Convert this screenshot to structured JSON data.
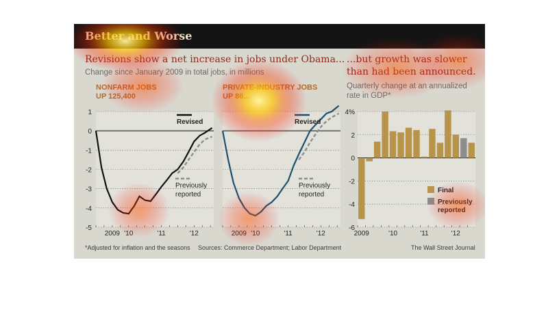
{
  "banner": "Better and Worse",
  "left_headline": "Revisions show a net increase in jobs under Obama...",
  "left_subtitle": "Change since January 2009 in total jobs, in millions",
  "right_headline_1": "...but growth was slower",
  "right_headline_2": "than had been announced.",
  "right_subtitle_1": "Quarterly change at an annualized",
  "right_subtitle_2": "rate in GDP*",
  "panels": {
    "nonfarm": {
      "title_1": "NONFARM JOBS",
      "title_2": "UP 125,400"
    },
    "private": {
      "title_1": "PRIVATE-INDUSTRY JOBS",
      "title_2": "UP 86..."
    }
  },
  "footnote": "*Adjusted for inflation and the seasons",
  "sources": "Sources: Commerce Department; Labor Department",
  "credit": "The Wall Street Journal",
  "colors": {
    "nonfarm": "#111111",
    "private": "#1e4f6c",
    "previous": "#8d8d8d",
    "final": "#b8944a",
    "headline": "#8a2a1c",
    "panel_title": "#b46a2c"
  },
  "chart_data": [
    {
      "type": "line",
      "title": "NONFARM JOBS",
      "ylim": [
        -5,
        1
      ],
      "yticks": [
        1,
        0,
        -1,
        -2,
        -3,
        -4,
        -5
      ],
      "xlim": [
        2009.0,
        2012.6
      ],
      "xticks": [
        {
          "label": "2009",
          "x": 2009.5
        },
        {
          "label": "'10",
          "x": 2010.0
        },
        {
          "label": "'11",
          "x": 2011.0
        },
        {
          "label": "'12",
          "x": 2012.0
        }
      ],
      "legend": [
        "Revised",
        "Previously reported"
      ],
      "series": [
        {
          "name": "Revised",
          "x": [
            2009.0,
            2009.17,
            2009.33,
            2009.5,
            2009.67,
            2009.83,
            2010.0,
            2010.17,
            2010.33,
            2010.5,
            2010.67,
            2010.83,
            2011.0,
            2011.17,
            2011.33,
            2011.5,
            2011.67,
            2011.83,
            2012.0,
            2012.17,
            2012.33,
            2012.55
          ],
          "values": [
            0,
            -1.9,
            -3.0,
            -3.7,
            -4.1,
            -4.25,
            -4.3,
            -3.9,
            -3.4,
            -3.6,
            -3.65,
            -3.3,
            -2.9,
            -2.55,
            -2.2,
            -2.0,
            -1.6,
            -1.1,
            -0.55,
            -0.25,
            -0.1,
            0.15
          ]
        },
        {
          "name": "Previously reported",
          "x": [
            2011.5,
            2011.67,
            2011.83,
            2012.0,
            2012.17,
            2012.33,
            2012.55
          ],
          "values": [
            -2.2,
            -1.9,
            -1.5,
            -1.1,
            -0.7,
            -0.45,
            -0.3
          ]
        }
      ]
    },
    {
      "type": "line",
      "title": "PRIVATE-INDUSTRY JOBS",
      "ylim": [
        -5,
        1
      ],
      "xlim": [
        2009.0,
        2012.6
      ],
      "xticks": [
        {
          "label": "2009",
          "x": 2009.5
        },
        {
          "label": "'10",
          "x": 2010.0
        },
        {
          "label": "'11",
          "x": 2011.0
        },
        {
          "label": "'12",
          "x": 2012.0
        }
      ],
      "legend": [
        "Revised",
        "Previously reported"
      ],
      "series": [
        {
          "name": "Revised",
          "x": [
            2009.0,
            2009.17,
            2009.33,
            2009.5,
            2009.67,
            2009.83,
            2010.0,
            2010.17,
            2010.33,
            2010.5,
            2010.67,
            2010.83,
            2011.0,
            2011.17,
            2011.33,
            2011.5,
            2011.67,
            2011.83,
            2012.0,
            2012.17,
            2012.33,
            2012.55
          ],
          "values": [
            0,
            -1.5,
            -2.7,
            -3.5,
            -4.0,
            -4.3,
            -4.4,
            -4.2,
            -3.9,
            -3.7,
            -3.4,
            -3.0,
            -2.6,
            -1.8,
            -1.2,
            -0.6,
            0.0,
            0.3,
            0.6,
            0.9,
            1.0,
            1.3
          ]
        },
        {
          "name": "Previously reported",
          "x": [
            2011.33,
            2011.5,
            2011.67,
            2011.83,
            2012.0,
            2012.17,
            2012.33,
            2012.55
          ],
          "values": [
            -1.5,
            -1.1,
            -0.6,
            -0.2,
            0.2,
            0.5,
            0.7,
            0.9
          ]
        }
      ]
    },
    {
      "type": "bar",
      "ylim": [
        -6,
        4
      ],
      "yticks": [
        "4%",
        "2",
        "0",
        "-2",
        "-4",
        "-6"
      ],
      "xticks": [
        {
          "label": "2009",
          "pos": 0.5
        },
        {
          "label": "'10",
          "pos": 4.5
        },
        {
          "label": "'11",
          "pos": 8.5
        },
        {
          "label": "'12",
          "pos": 12.5
        }
      ],
      "legend": [
        "Final",
        "Previously reported"
      ],
      "series": [
        {
          "name": "Final",
          "values": [
            -5.3,
            -0.3,
            1.4,
            4.0,
            2.3,
            2.2,
            2.6,
            2.4,
            0.1,
            2.5,
            1.3,
            4.1,
            2.0,
            1.7,
            1.3
          ]
        },
        {
          "name": "Previously reported",
          "values": [
            null,
            null,
            null,
            null,
            null,
            null,
            null,
            null,
            null,
            null,
            null,
            null,
            null,
            1.7,
            null
          ]
        }
      ]
    }
  ]
}
